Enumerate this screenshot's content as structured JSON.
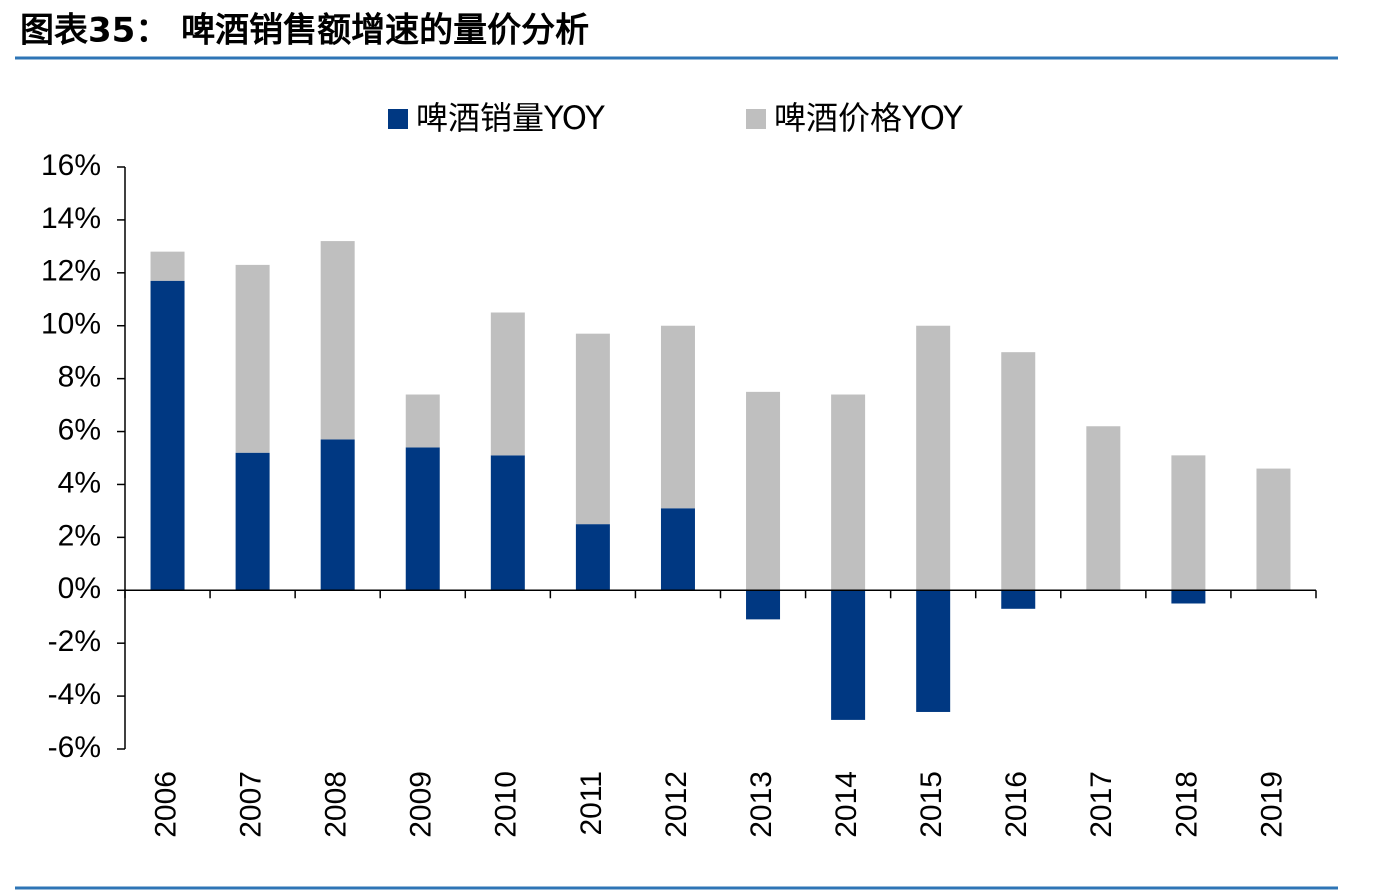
{
  "chart_data": {
    "type": "stacked-bar",
    "title": "图表35：  啤酒销售额增速的量价分析",
    "categories": [
      "2006",
      "2007",
      "2008",
      "2009",
      "2010",
      "2011",
      "2012",
      "2013",
      "2014",
      "2015",
      "2016",
      "2017",
      "2018",
      "2019"
    ],
    "series": [
      {
        "name": "啤酒销量YOY",
        "color": "#003882",
        "values": [
          11.7,
          5.2,
          5.7,
          5.4,
          5.1,
          2.5,
          3.1,
          -1.1,
          -4.9,
          -4.6,
          -0.7,
          0,
          -0.5,
          0
        ]
      },
      {
        "name": "啤酒价格YOY",
        "color": "#bfbfbf",
        "values": [
          1.1,
          7.1,
          7.5,
          2.0,
          5.4,
          7.2,
          6.9,
          7.5,
          7.4,
          10.0,
          9.0,
          6.2,
          5.1,
          4.6
        ]
      }
    ],
    "ylim": [
      -6,
      16
    ],
    "yticks": [
      {
        "value": 16,
        "label": "16%"
      },
      {
        "value": 14,
        "label": "14%"
      },
      {
        "value": 12,
        "label": "12%"
      },
      {
        "value": 10,
        "label": "10%"
      },
      {
        "value": 8,
        "label": "8%"
      },
      {
        "value": 6,
        "label": "6%"
      },
      {
        "value": 4,
        "label": "4%"
      },
      {
        "value": 2,
        "label": "2%"
      },
      {
        "value": 0,
        "label": "0%"
      },
      {
        "value": -2,
        "label": "-2%"
      },
      {
        "value": -4,
        "label": "-4%"
      },
      {
        "value": -6,
        "label": "-6%"
      }
    ]
  }
}
